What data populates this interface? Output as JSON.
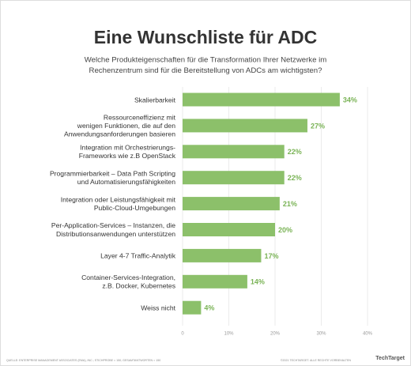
{
  "chart_data": {
    "type": "bar",
    "orientation": "horizontal",
    "title": "Eine Wunschliste für ADC",
    "subtitle": "Welche Produkteigenschaften für die Transformation Ihrer Netzwerke im\nRechenzentrum sind für die Bereitstellung von ADCs am wichtigsten?",
    "categories": [
      "Skalierbarkeit",
      "Ressourceneffizienz mit\nwenigen Funktionen, die auf den\nAnwendungsanforderungen basieren",
      "Integration mit Orchestrierungs-\nFrameworks wie z.B OpenStack",
      "Programmierbarkeit – Data Path Scripting\nund Automatisierungsfähigkeiten",
      "Integration oder Leistungsfähigkeit mit\nPublic-Cloud-Umgebungen",
      "Per-Application-Services – Instanzen, die\nDistributionsanwendungen unterstützen",
      "Layer 4-7 Traffic-Analytik",
      "Container-Services-Integration,\nz.B. Docker, Kubernetes",
      "Weiss nicht"
    ],
    "values": [
      34,
      27,
      22,
      22,
      21,
      20,
      17,
      14,
      4
    ],
    "value_labels": [
      "34%",
      "27%",
      "22%",
      "22%",
      "21%",
      "20%",
      "17%",
      "14%",
      "4%"
    ],
    "color": "#8cc06a",
    "xlim": [
      0,
      40
    ],
    "xticks": [
      0,
      {
        "value": 10,
        "label": "10%"
      },
      {
        "value": 20,
        "label": "20%"
      },
      {
        "value": 30,
        "label": "30%"
      },
      {
        "value": 40,
        "label": "40%"
      }
    ],
    "grid": true,
    "source": "QUELLE: ENTERPRISE MANAGEMENT ASSOCIATES (EMA), INC.; STICHPROBE = 150; GESAMTANTWORTEN = 150",
    "copyright": "©2021 TECHTARGET. ALLE RECHTE VORBEHALTEN",
    "logo": "TechTarget"
  }
}
